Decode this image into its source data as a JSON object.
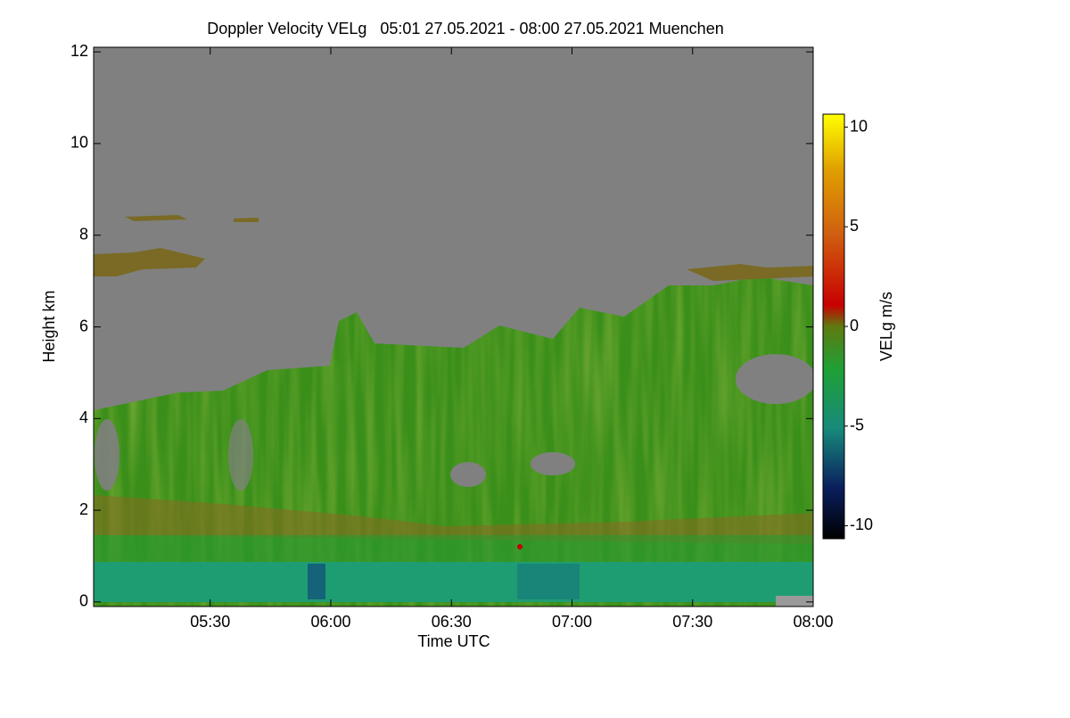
{
  "chart_data": {
    "type": "heatmap",
    "title": "Doppler Velocity VELg   05:01 27.05.2021 - 08:00 27.05.2021 Muenchen",
    "xlabel": "Time UTC",
    "ylabel": "Height km",
    "xlim": [
      5.0167,
      8.0
    ],
    "xticks": [
      {
        "value": 5.5,
        "label": "05:30"
      },
      {
        "value": 6.0,
        "label": "06:00"
      },
      {
        "value": 6.5,
        "label": "06:30"
      },
      {
        "value": 7.0,
        "label": "07:00"
      },
      {
        "value": 7.5,
        "label": "07:30"
      },
      {
        "value": 8.0,
        "label": "08:00"
      }
    ],
    "ylim": [
      -0.1,
      12.1
    ],
    "yticks": [
      0,
      2,
      4,
      6,
      8,
      10,
      12
    ],
    "colorbar": {
      "label": "VELg m/s",
      "lim": [
        -10.65,
        10.65
      ],
      "ticks": [
        -10,
        -5,
        0,
        5,
        10
      ]
    }
  }
}
